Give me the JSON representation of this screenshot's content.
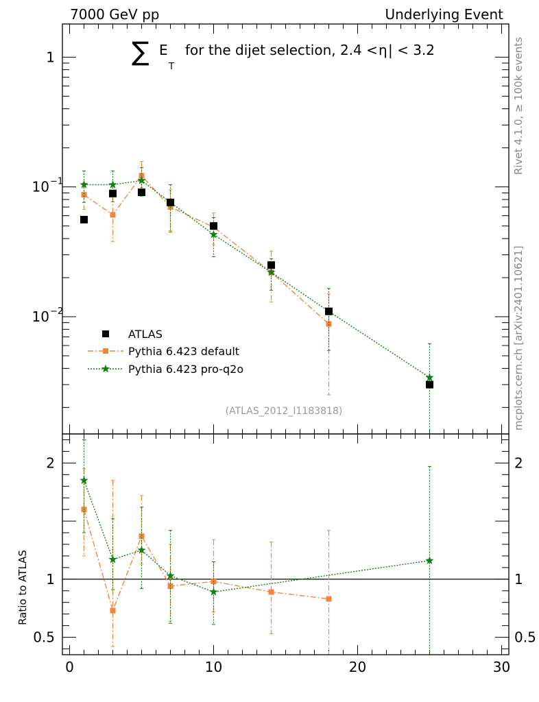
{
  "header": {
    "left": "7000 GeV pp",
    "right": "Underlying Event"
  },
  "side_text": {
    "rivet": "Rivet 4.1.0, ≥ 100k events",
    "mcplots": "mcplots.cern.ch [arXiv:2401.10621]"
  },
  "colors": {
    "atlas": "#000000",
    "pythia_default": "#f5843c",
    "pythia_proq2o": "#127f12"
  },
  "chart_data": {
    "type": "scatter",
    "title_parts": {
      "sum": "∑",
      "e": "E",
      "sub": "T",
      "rest": "for the dijet selection, 2.4 <",
      "eta": "η",
      "end": "| < 3.2"
    },
    "analysis_label": "(ATLAS_2012_I1183818)",
    "xlim": [
      -0.5,
      30.5
    ],
    "main": {
      "yscale": "log",
      "ylim": [
        0.00125,
        1.8
      ],
      "yticks": [
        {
          "value": 1,
          "label": "1"
        },
        {
          "value": 0.1,
          "label": "10",
          "exp": "−1"
        },
        {
          "value": 0.01,
          "label": "10",
          "exp": "−2"
        }
      ]
    },
    "ratio": {
      "ylabel": "Ratio to ATLAS",
      "ylim": [
        0.35,
        2.25
      ],
      "yticks": [
        {
          "value": 0.5,
          "label": "0.5"
        },
        {
          "value": 1,
          "label": "1"
        },
        {
          "value": 2,
          "label": "2"
        }
      ]
    },
    "xticks": [
      {
        "value": 0,
        "label": "0"
      },
      {
        "value": 10,
        "label": "10"
      },
      {
        "value": 20,
        "label": "20"
      },
      {
        "value": 30,
        "label": "30"
      }
    ],
    "legend": [
      "ATLAS",
      "Pythia 6.423 default",
      "Pythia 6.423 pro-q2o"
    ],
    "legend_position": "bottom-left",
    "series": [
      {
        "name": "ATLAS",
        "x": [
          1,
          3,
          5,
          7,
          10,
          14,
          18,
          25
        ],
        "y": [
          0.056,
          0.089,
          0.091,
          0.076,
          0.05,
          0.025,
          0.011,
          0.003
        ],
        "ratio": [
          1,
          1,
          1,
          1,
          1,
          1,
          1,
          1
        ]
      },
      {
        "name": "Pythia 6.423 default",
        "x": [
          1,
          3,
          5,
          7,
          10,
          14,
          18
        ],
        "y": [
          0.087,
          0.061,
          0.122,
          0.07,
          0.049,
          0.022,
          0.0088
        ],
        "yerr_lo": [
          0.067,
          0.038,
          0.099,
          0.046,
          0.036,
          0.013,
          0.0025
        ],
        "yerr_hi": [
          0.107,
          0.084,
          0.157,
          0.095,
          0.063,
          0.032,
          0.015
        ],
        "ratio": [
          1.6,
          0.73,
          1.37,
          0.94,
          0.98,
          0.89,
          0.83
        ],
        "ratio_lo": [
          1.2,
          0.42,
          1.13,
          0.64,
          0.72,
          0.53,
          0.35
        ],
        "ratio_hi": [
          1.95,
          1.85,
          1.72,
          1.3,
          1.34,
          1.32,
          1.42
        ]
      },
      {
        "name": "Pythia 6.423 pro-q2o",
        "x": [
          1,
          3,
          5,
          7,
          10,
          14,
          18,
          25
        ],
        "y": [
          0.104,
          0.104,
          0.112,
          0.076,
          0.043,
          0.022,
          0.011,
          0.0034
        ],
        "yerr_lo": [
          0.076,
          0.077,
          0.085,
          0.045,
          0.029,
          0.016,
          0.0055,
          0.0005
        ],
        "yerr_hi": [
          0.133,
          0.133,
          0.141,
          0.104,
          0.058,
          0.028,
          0.0165,
          0.0062
        ],
        "ratio": [
          1.85,
          1.17,
          1.25,
          1.03,
          0.89,
          null,
          null,
          1.16
        ],
        "ratio_lo": [
          1.4,
          0.91,
          0.92,
          0.62,
          0.61,
          null,
          null,
          0.35
        ],
        "ratio_hi": [
          2.2,
          1.52,
          1.62,
          1.42,
          1.15,
          null,
          null,
          1.97
        ]
      }
    ]
  }
}
